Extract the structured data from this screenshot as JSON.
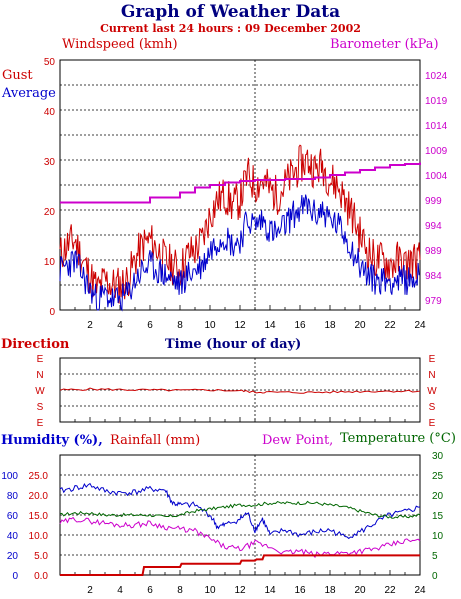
{
  "title": "Graph of Weather Data",
  "subtitle": "Current last 24 hours : 09 December 2002",
  "colors": {
    "red": "#cc0000",
    "blue": "#0000cc",
    "magenta": "#cc00cc",
    "green": "#006600",
    "navy": "#000080"
  },
  "chart_data": [
    {
      "type": "line",
      "labels": {
        "left": "Windspeed (kmh)",
        "right": "Barometer (kPa)",
        "gust": "Gust",
        "average": "Average",
        "xlabel": "Time (hour of day)"
      },
      "x_ticks": [
        "2",
        "4",
        "6",
        "8",
        "10",
        "12",
        "14",
        "16",
        "18",
        "20",
        "22",
        "24"
      ],
      "y_ticks": [
        "0",
        "10",
        "20",
        "30",
        "40",
        "50"
      ],
      "y2_ticks": [
        "979",
        "984",
        "989",
        "994",
        "999",
        "1004",
        "1009",
        "1014",
        "1019",
        "1024"
      ],
      "ylim": [
        0,
        50
      ],
      "y2lim": [
        977,
        1027
      ],
      "xlim": [
        0,
        24
      ],
      "grid": true,
      "series": [
        {
          "name": "Gust",
          "color": "#cc0000",
          "x": [
            0,
            0.5,
            1,
            1.5,
            2,
            2.5,
            3,
            3.5,
            4,
            4.5,
            5,
            5.5,
            6,
            6.5,
            7,
            7.5,
            8,
            8.5,
            9,
            9.5,
            10,
            10.5,
            11,
            11.5,
            12,
            12.5,
            13,
            13.5,
            14,
            14.5,
            15,
            15.5,
            16,
            16.5,
            17,
            17.5,
            18,
            18.5,
            19,
            19.5,
            20,
            20.5,
            21,
            21.5,
            22,
            22.5,
            23,
            23.5,
            24
          ],
          "values": [
            11,
            13,
            14,
            10,
            7,
            4,
            6,
            5,
            5,
            6,
            10,
            13,
            14,
            12,
            10,
            9,
            8,
            11,
            12,
            14,
            19,
            22,
            23,
            21,
            22,
            27,
            25,
            26,
            24,
            23,
            25,
            27,
            29,
            30,
            28,
            29,
            26,
            25,
            22,
            19,
            15,
            12,
            10,
            10,
            9,
            10,
            9,
            10,
            10
          ]
        },
        {
          "name": "Average",
          "color": "#0000cc",
          "x": [
            0,
            0.5,
            1,
            1.5,
            2,
            2.5,
            3,
            3.5,
            4,
            4.5,
            5,
            5.5,
            6,
            6.5,
            7,
            7.5,
            8,
            8.5,
            9,
            9.5,
            10,
            10.5,
            11,
            11.5,
            12,
            12.5,
            13,
            13.5,
            14,
            14.5,
            15,
            15.5,
            16,
            16.5,
            17,
            17.5,
            18,
            18.5,
            19,
            19.5,
            20,
            20.5,
            21,
            21.5,
            22,
            22.5,
            23,
            23.5,
            24
          ],
          "values": [
            8,
            9,
            10,
            7,
            4,
            2,
            3,
            2,
            2,
            3,
            6,
            8,
            9,
            8,
            7,
            6,
            5,
            7,
            8,
            9,
            12,
            14,
            15,
            13,
            14,
            18,
            17,
            18,
            16,
            15,
            17,
            19,
            20,
            21,
            19,
            20,
            18,
            17,
            15,
            12,
            9,
            7,
            6,
            6,
            6,
            6,
            6,
            6,
            7
          ]
        },
        {
          "name": "Barometer",
          "color": "#cc00cc",
          "axis": "right",
          "x": [
            0,
            3,
            6,
            8,
            9,
            10,
            11,
            12,
            13,
            15,
            17,
            18,
            19,
            20,
            21,
            22,
            23,
            24
          ],
          "values": [
            998.5,
            998.5,
            999.5,
            1000.5,
            1001.5,
            1002,
            1002.5,
            1002.8,
            1003,
            1003.2,
            1003.5,
            1004,
            1004.5,
            1005,
            1005.5,
            1006,
            1006.2,
            1006.5
          ]
        }
      ]
    },
    {
      "type": "line",
      "labels": {
        "left": "Direction"
      },
      "y_ticks": [
        "E",
        "N",
        "W",
        "S",
        "E"
      ],
      "xlim": [
        0,
        24
      ],
      "series": [
        {
          "name": "Direction",
          "color": "#cc0000",
          "x": [
            0,
            2,
            4,
            6,
            8,
            10,
            12,
            13,
            14,
            16,
            18,
            20,
            22,
            24
          ],
          "values": [
            270,
            275,
            272,
            270,
            268,
            270,
            266,
            258,
            258,
            256,
            258,
            262,
            264,
            264
          ]
        }
      ]
    },
    {
      "type": "line",
      "labels": {
        "humidity": "Humidity (%),",
        "rainfall": "Rainfall (mm)",
        "dewpoint": "Dew Point,",
        "temperature": "Temperature (°C)"
      },
      "y_ticks_humidity": [
        "0",
        "20",
        "40",
        "60",
        "80",
        "100"
      ],
      "y_ticks_rain": [
        "0.0",
        "5.0",
        "10.0",
        "15.0",
        "20.0",
        "25.0"
      ],
      "y2_ticks": [
        "0",
        "5",
        "10",
        "15",
        "20",
        "25",
        "30"
      ],
      "x_ticks": [
        "2",
        "4",
        "6",
        "8",
        "10",
        "12",
        "14",
        "16",
        "18",
        "20",
        "22",
        "24"
      ],
      "xlim": [
        0,
        24
      ],
      "series": [
        {
          "name": "Humidity",
          "color": "#0000cc",
          "axis": "humidity",
          "x": [
            0,
            1,
            2,
            3,
            4,
            5,
            6,
            7,
            7.5,
            8,
            9,
            10,
            10.5,
            11,
            12,
            12.5,
            13,
            13.5,
            14,
            15,
            16,
            17,
            18,
            19,
            20,
            21,
            22,
            23,
            24
          ],
          "values": [
            84,
            87,
            90,
            84,
            82,
            83,
            86,
            85,
            72,
            70,
            70,
            60,
            48,
            50,
            56,
            62,
            45,
            56,
            40,
            45,
            40,
            43,
            45,
            38,
            43,
            52,
            60,
            63,
            68
          ]
        },
        {
          "name": "Rainfall",
          "color": "#cc0000",
          "axis": "rain",
          "x": [
            0,
            5.5,
            5.6,
            8,
            8.1,
            12,
            12.1,
            13,
            13.1,
            13.5,
            13.6,
            24
          ],
          "values": [
            0,
            0,
            2,
            2,
            2.8,
            2.8,
            3.6,
            3.6,
            3.9,
            3.9,
            4.9,
            4.9
          ]
        },
        {
          "name": "Dew Point",
          "color": "#cc00cc",
          "axis": "right",
          "x": [
            0,
            1,
            2,
            3,
            4,
            5,
            6,
            7,
            8,
            9,
            10,
            11,
            12,
            13,
            14,
            15,
            16,
            17,
            18,
            19,
            20,
            21,
            22,
            23,
            24
          ],
          "values": [
            13,
            14,
            13.5,
            13,
            12.5,
            12.5,
            13,
            12,
            11.5,
            11,
            9,
            7,
            6.5,
            8,
            7,
            5.5,
            6,
            5,
            5.5,
            5.5,
            6,
            6.5,
            7.5,
            8.5,
            8.5
          ]
        },
        {
          "name": "Temperature",
          "color": "#006600",
          "axis": "right",
          "x": [
            0,
            1,
            2,
            3,
            4,
            5,
            6,
            7,
            8,
            9,
            10,
            11,
            12,
            13,
            14,
            15,
            16,
            17,
            18,
            19,
            20,
            21,
            22,
            23,
            24
          ],
          "values": [
            15,
            15.5,
            15.5,
            15,
            15,
            15,
            15,
            14.5,
            15,
            16,
            16.5,
            17,
            17.5,
            17.5,
            18,
            18,
            18,
            18,
            17.5,
            17,
            16,
            15,
            14.5,
            14.5,
            15
          ]
        }
      ]
    }
  ]
}
